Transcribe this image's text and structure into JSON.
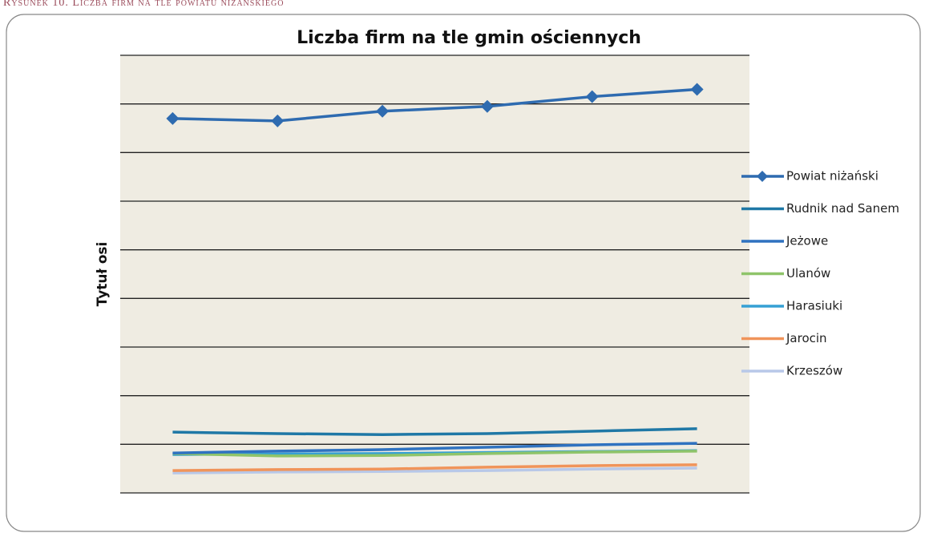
{
  "caption": "Rysunek 10. Liczba firm na tle powiatu niżańskiego",
  "chart_data": {
    "type": "line",
    "title": "Liczba firm na tle gmin ościennych",
    "y_label": "Tytuł osi",
    "categories": [
      null,
      null,
      null,
      null,
      null,
      null
    ],
    "ylim": [
      0,
      9
    ],
    "yticks": [
      0,
      1,
      2,
      3,
      4,
      5,
      6,
      7,
      8,
      9
    ],
    "grid": true,
    "legend": "right",
    "series": [
      {
        "name": "Powiat niżański",
        "color": "#2e6bb0",
        "marker": "diamond",
        "values": [
          7.7,
          7.65,
          7.85,
          7.95,
          8.15,
          8.3
        ]
      },
      {
        "name": "Rudnik nad Sanem",
        "color": "#1f78a6",
        "values": [
          1.25,
          1.22,
          1.2,
          1.22,
          1.27,
          1.32
        ]
      },
      {
        "name": "Jeżowe",
        "color": "#2f72c0",
        "values": [
          0.82,
          0.86,
          0.89,
          0.94,
          0.99,
          1.02
        ]
      },
      {
        "name": "Ulanów",
        "color": "#8fc46a",
        "values": [
          0.81,
          0.76,
          0.77,
          0.81,
          0.84,
          0.86
        ]
      },
      {
        "name": "Harasiuki",
        "color": "#35a0d4",
        "values": [
          0.79,
          0.8,
          0.81,
          0.83,
          0.85,
          0.87
        ]
      },
      {
        "name": "Jarocin",
        "color": "#f0945a",
        "values": [
          0.46,
          0.48,
          0.49,
          0.53,
          0.56,
          0.58
        ]
      },
      {
        "name": "Krzeszów",
        "color": "#b8c8e8",
        "values": [
          0.41,
          0.43,
          0.44,
          0.46,
          0.49,
          0.51
        ]
      }
    ]
  }
}
